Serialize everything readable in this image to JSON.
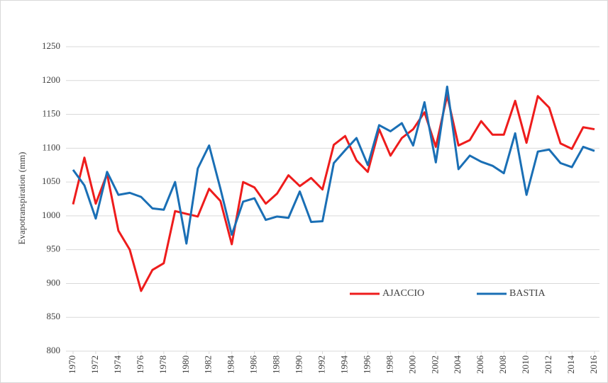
{
  "chart_data": {
    "type": "line",
    "y_label": "Evapotranspiration (mm)",
    "x": [
      1970,
      1971,
      1972,
      1973,
      1974,
      1975,
      1976,
      1977,
      1978,
      1979,
      1980,
      1981,
      1982,
      1983,
      1984,
      1985,
      1986,
      1987,
      1988,
      1989,
      1990,
      1991,
      1992,
      1993,
      1994,
      1995,
      1996,
      1997,
      1998,
      1999,
      2000,
      2001,
      2002,
      2003,
      2004,
      2005,
      2006,
      2007,
      2008,
      2009,
      2010,
      2011,
      2012,
      2013,
      2014,
      2015,
      2016
    ],
    "xlim": [
      1970,
      2016
    ],
    "xticks": [
      1970,
      1972,
      1974,
      1976,
      1978,
      1980,
      1982,
      1984,
      1986,
      1988,
      1990,
      1992,
      1994,
      1996,
      1998,
      2000,
      2002,
      2004,
      2006,
      2008,
      2010,
      2012,
      2014,
      2016
    ],
    "ylim": [
      800,
      1250
    ],
    "yticks": [
      800,
      850,
      900,
      950,
      1000,
      1050,
      1100,
      1150,
      1200,
      1250
    ],
    "grid": true,
    "legend": "lower-right",
    "series": [
      {
        "name": "AJACCIO",
        "color": "#ee1c1c",
        "values": [
          1017,
          1086,
          1018,
          1062,
          978,
          950,
          889,
          920,
          930,
          1007,
          1003,
          999,
          1040,
          1022,
          958,
          1050,
          1042,
          1018,
          1033,
          1060,
          1044,
          1056,
          1039,
          1105,
          1118,
          1082,
          1065,
          1128,
          1089,
          1115,
          1128,
          1153,
          1102,
          1178,
          1104,
          1112,
          1140,
          1120,
          1120,
          1170,
          1108,
          1177,
          1160,
          1107,
          1099,
          1131,
          1128
        ]
      },
      {
        "name": "BASTIA",
        "color": "#1a6fb5",
        "values": [
          1068,
          1045,
          996,
          1065,
          1031,
          1034,
          1028,
          1011,
          1009,
          1050,
          959,
          1070,
          1104,
          1040,
          972,
          1021,
          1026,
          994,
          999,
          997,
          1036,
          991,
          992,
          1078,
          1097,
          1115,
          1075,
          1134,
          1125,
          1137,
          1104,
          1168,
          1079,
          1191,
          1069,
          1089,
          1080,
          1074,
          1063,
          1122,
          1031,
          1095,
          1098,
          1078,
          1072,
          1102,
          1096
        ]
      }
    ]
  }
}
